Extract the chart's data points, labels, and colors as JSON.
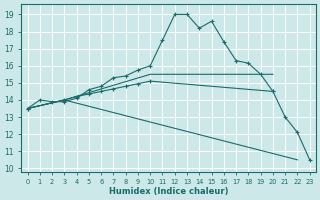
{
  "xlabel": "Humidex (Indice chaleur)",
  "bg_color": "#cce8e8",
  "grid_color": "#ffffff",
  "line_color": "#1a6b6b",
  "xlim": [
    -0.5,
    23.5
  ],
  "ylim": [
    9.8,
    19.6
  ],
  "xticks": [
    0,
    1,
    2,
    3,
    4,
    5,
    6,
    7,
    8,
    9,
    10,
    11,
    12,
    13,
    14,
    15,
    16,
    17,
    18,
    19,
    20,
    21,
    22,
    23
  ],
  "yticks": [
    10,
    11,
    12,
    13,
    14,
    15,
    16,
    17,
    18,
    19
  ],
  "curve1_x": [
    0,
    1,
    2,
    3,
    4,
    5,
    6,
    7,
    8,
    9,
    10,
    11,
    12,
    13,
    14,
    15,
    16,
    17,
    18,
    19,
    20,
    21,
    22,
    23
  ],
  "curve1_y": [
    13.5,
    14.0,
    13.9,
    13.9,
    14.1,
    14.6,
    14.8,
    15.3,
    15.4,
    15.75,
    16.0,
    17.5,
    19.0,
    19.0,
    18.2,
    18.6,
    17.4,
    16.3,
    16.15,
    15.5,
    14.5,
    13.0,
    12.1,
    10.5
  ],
  "curve2_x": [
    0,
    3,
    10,
    20
  ],
  "curve2_y": [
    13.5,
    14.0,
    15.5,
    15.5
  ],
  "curve3_x": [
    0,
    3,
    4,
    5,
    6,
    7,
    8,
    9,
    10,
    20
  ],
  "curve3_y": [
    13.5,
    14.0,
    14.2,
    14.35,
    14.5,
    14.65,
    14.8,
    14.95,
    15.1,
    14.5
  ],
  "curve4_x": [
    0,
    3,
    22
  ],
  "curve4_y": [
    13.5,
    14.0,
    10.5
  ]
}
